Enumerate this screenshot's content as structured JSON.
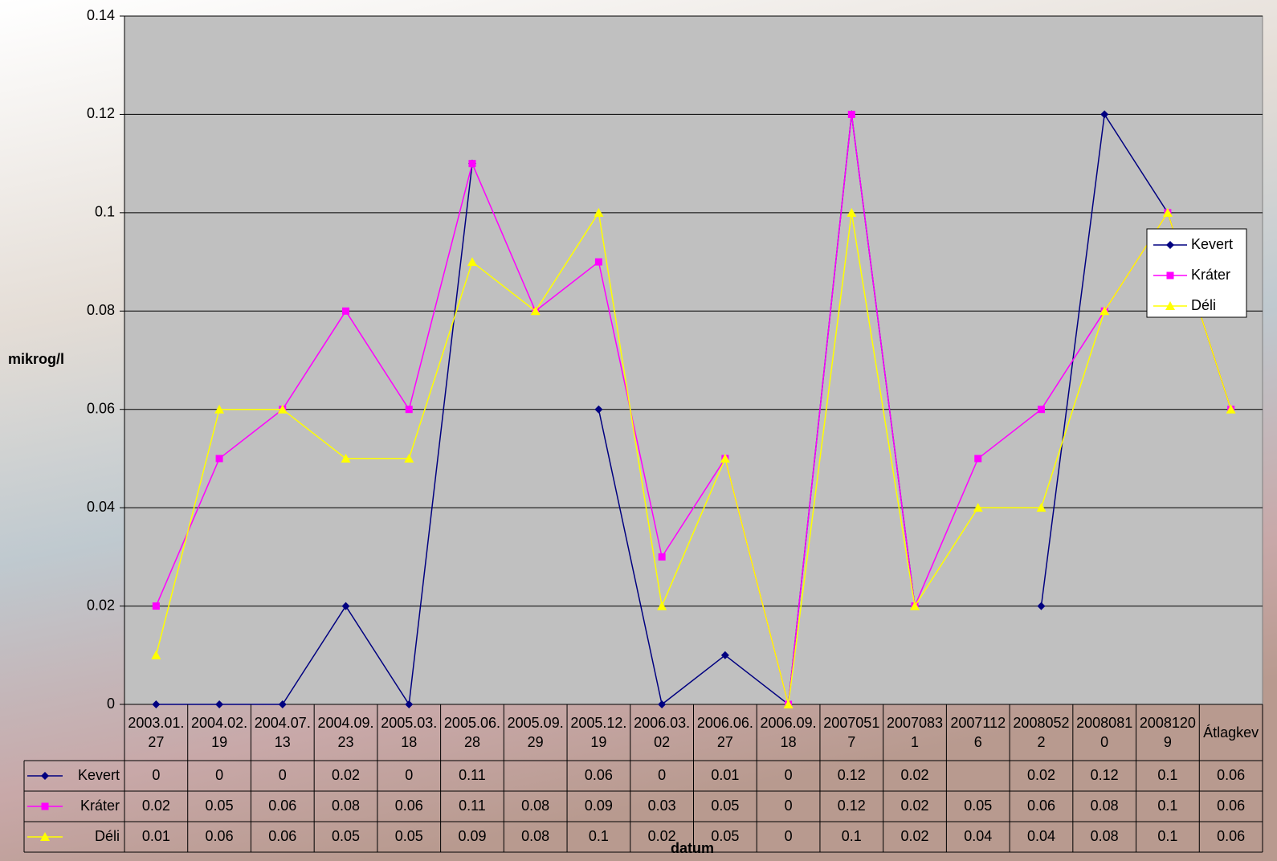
{
  "chart_data": {
    "type": "line",
    "ylabel": "mikrog/l",
    "xlabel": "datum",
    "categories": [
      "2003.01.27",
      "2004.02.19",
      "2004.07.13",
      "2004.09.23",
      "2005.03.18",
      "2005.06.28",
      "2005.09.29",
      "2005.12.19",
      "2006.03.02",
      "2006.06.27",
      "2006.09.18",
      "20070517",
      "20070831",
      "20071126",
      "20080522",
      "20080810",
      "20081209",
      "Átlagkev"
    ],
    "series": [
      {
        "name": "Kevert",
        "color": "#000080",
        "marker": "diamond",
        "values": [
          0,
          0,
          0,
          0.02,
          0,
          0.11,
          null,
          0.06,
          0,
          0.01,
          0,
          0.12,
          0.02,
          null,
          0.02,
          0.12,
          0.1,
          0.06
        ]
      },
      {
        "name": "Kráter",
        "color": "#ff00ff",
        "marker": "square",
        "values": [
          0.02,
          0.05,
          0.06,
          0.08,
          0.06,
          0.11,
          0.08,
          0.09,
          0.03,
          0.05,
          0,
          0.12,
          0.02,
          0.05,
          0.06,
          0.08,
          0.1,
          0.06
        ]
      },
      {
        "name": "Déli",
        "color": "#ffff00",
        "marker": "triangle",
        "values": [
          0.01,
          0.06,
          0.06,
          0.05,
          0.05,
          0.09,
          0.08,
          0.1,
          0.02,
          0.05,
          0,
          0.1,
          0.02,
          0.04,
          0.04,
          0.08,
          0.1,
          0.06
        ]
      }
    ],
    "ylim": [
      0,
      0.14
    ],
    "yticks": [
      0,
      0.02,
      0.04,
      0.06,
      0.08,
      0.1,
      0.12,
      0.14
    ],
    "grid": true,
    "legend": "right",
    "data_table": true
  }
}
